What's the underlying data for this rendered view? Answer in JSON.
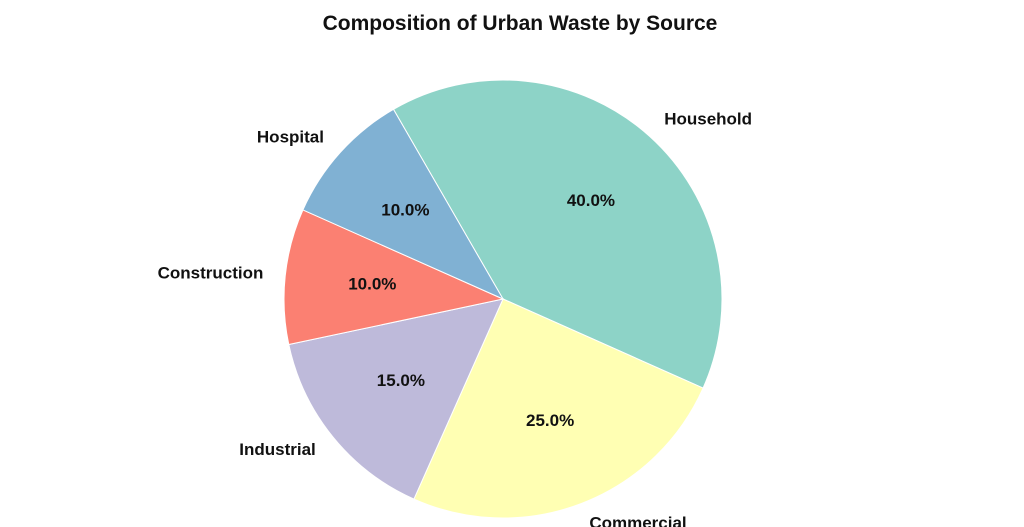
{
  "chart_data": {
    "type": "pie",
    "title": "Composition of Urban Waste by Source",
    "categories": [
      "Household",
      "Commercial",
      "Industrial",
      "Construction",
      "Hospital"
    ],
    "values": [
      40.0,
      25.0,
      15.0,
      10.0,
      10.0
    ],
    "value_labels": [
      "40.0%",
      "25.0%",
      "15.0%",
      "10.0%",
      "10.0%"
    ],
    "colors": [
      "#8dd3c7",
      "#ffffb3",
      "#bebada",
      "#fb8072",
      "#80b1d3"
    ],
    "start_angle_deg": 120,
    "direction": "clockwise"
  }
}
